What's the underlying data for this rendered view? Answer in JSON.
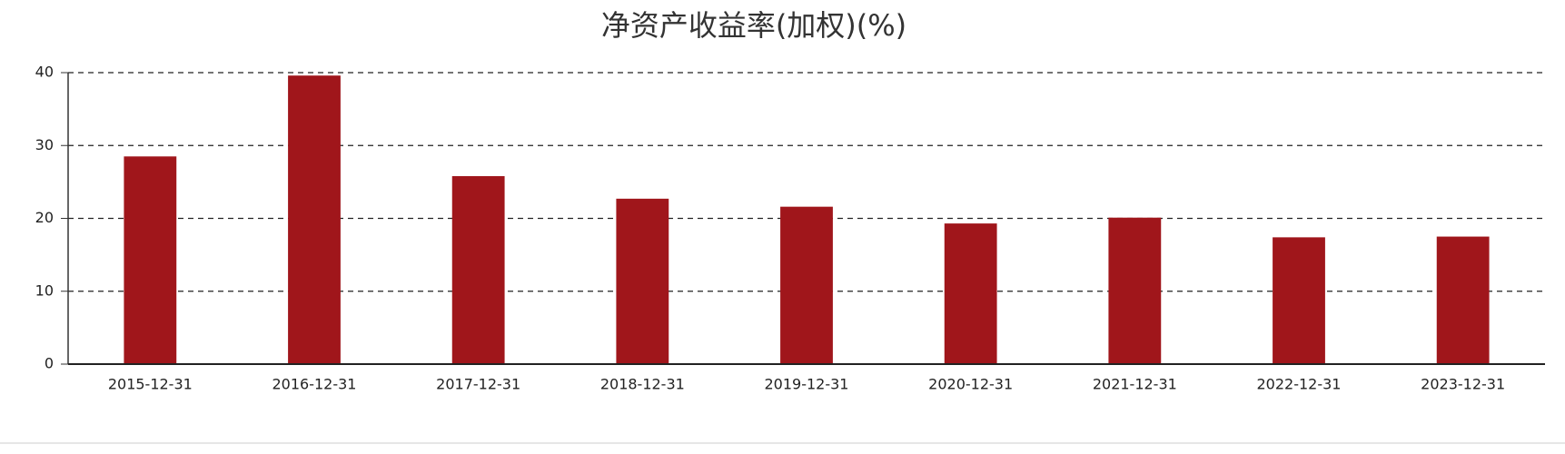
{
  "chart_data": {
    "type": "bar",
    "title": "净资产收益率(加权)(%)",
    "categories": [
      "2015-12-31",
      "2016-12-31",
      "2017-12-31",
      "2018-12-31",
      "2019-12-31",
      "2020-12-31",
      "2021-12-31",
      "2022-12-31",
      "2023-12-31"
    ],
    "values": [
      28.5,
      39.6,
      25.8,
      22.7,
      21.6,
      19.3,
      20.1,
      17.4,
      17.5
    ],
    "color": "#a0161b",
    "ylim": [
      0,
      40
    ],
    "yticks": [
      0,
      10,
      20,
      30,
      40
    ],
    "grid": true
  }
}
